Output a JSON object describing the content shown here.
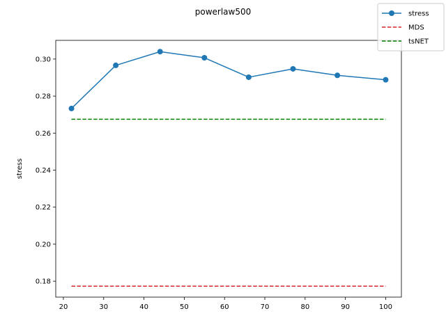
{
  "chart_data": {
    "type": "line",
    "title": "powerlaw500",
    "xlabel": "",
    "ylabel": "stress",
    "xlim": [
      18.1,
      103.9
    ],
    "ylim": [
      0.1714,
      0.3101
    ],
    "xticks": [
      20,
      30,
      40,
      50,
      60,
      70,
      80,
      90,
      100
    ],
    "yticks": [
      0.18,
      0.2,
      0.22,
      0.24,
      0.26,
      0.28,
      0.3
    ],
    "grid": false,
    "legend": "top-right",
    "series": [
      {
        "name": "stress",
        "style": "solid-marker",
        "color": "#1f77b4",
        "x": [
          22,
          33,
          44,
          55,
          66,
          77,
          88,
          100
        ],
        "y": [
          0.2733,
          0.2966,
          0.304,
          0.3007,
          0.2902,
          0.2947,
          0.2912,
          0.2888
        ]
      },
      {
        "name": "MDS",
        "style": "dashed",
        "color": "#d62728",
        "x": [
          22,
          100
        ],
        "y": [
          0.1773,
          0.1773
        ]
      },
      {
        "name": "tsNET",
        "style": "dashed",
        "color": "#008000",
        "x": [
          22,
          100
        ],
        "y": [
          0.2675,
          0.2675
        ]
      }
    ]
  }
}
